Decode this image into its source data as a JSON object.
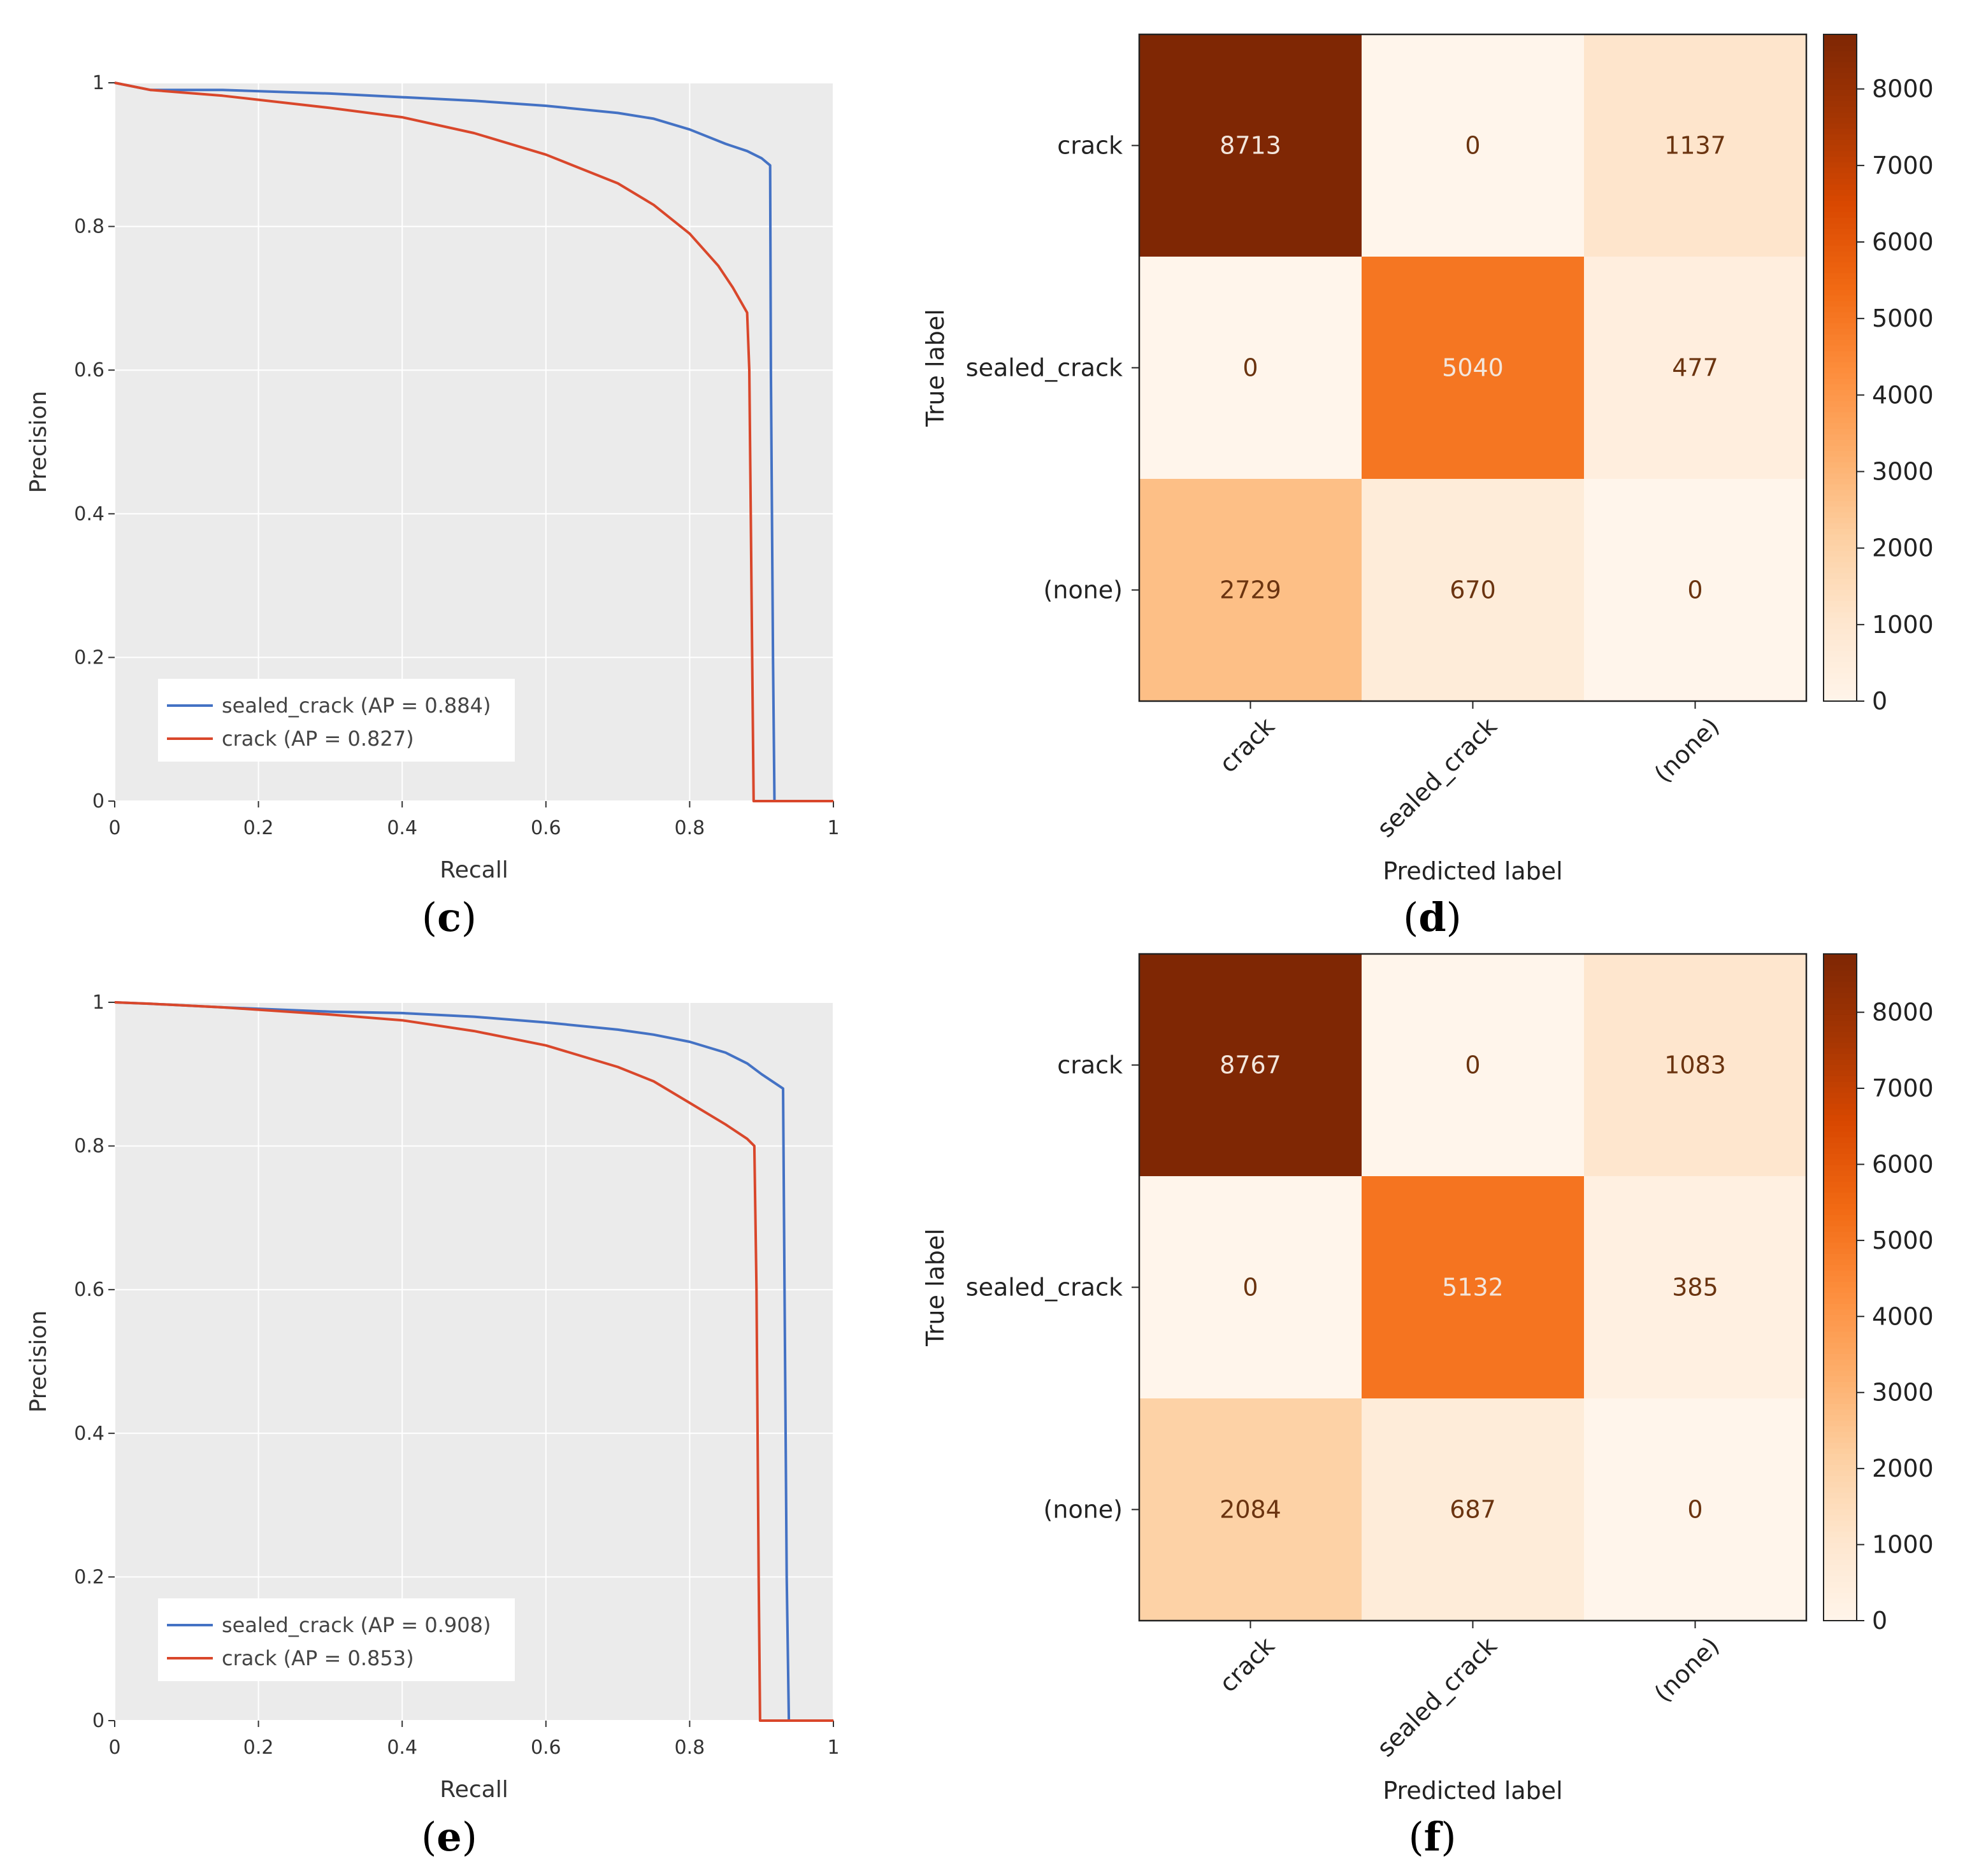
{
  "chart_data": [
    {
      "type": "line",
      "panel": "c",
      "xlabel": "Recall",
      "ylabel": "Precision",
      "xlim": [
        0,
        1
      ],
      "ylim": [
        0,
        1
      ],
      "xticks": [
        "0",
        "0.2",
        "0.4",
        "0.6",
        "0.8",
        "1"
      ],
      "yticks": [
        "0",
        "0.2",
        "0.4",
        "0.6",
        "0.8",
        "1"
      ],
      "grid": true,
      "legend_position": "bottom-left",
      "series": [
        {
          "name": "sealed_crack (AP = 0.884)",
          "color": "#4472c4",
          "points": [
            [
              0,
              1
            ],
            [
              0.05,
              0.99
            ],
            [
              0.15,
              0.99
            ],
            [
              0.3,
              0.985
            ],
            [
              0.4,
              0.98
            ],
            [
              0.5,
              0.975
            ],
            [
              0.6,
              0.968
            ],
            [
              0.7,
              0.958
            ],
            [
              0.75,
              0.95
            ],
            [
              0.8,
              0.935
            ],
            [
              0.85,
              0.915
            ],
            [
              0.88,
              0.905
            ],
            [
              0.9,
              0.895
            ],
            [
              0.912,
              0.885
            ],
            [
              0.913,
              0.6
            ],
            [
              0.916,
              0.2
            ],
            [
              0.918,
              0
            ],
            [
              1,
              0
            ]
          ]
        },
        {
          "name": "crack (AP = 0.827)",
          "color": "#d9472b",
          "points": [
            [
              0,
              1
            ],
            [
              0.05,
              0.99
            ],
            [
              0.15,
              0.982
            ],
            [
              0.3,
              0.965
            ],
            [
              0.4,
              0.952
            ],
            [
              0.5,
              0.93
            ],
            [
              0.6,
              0.9
            ],
            [
              0.7,
              0.86
            ],
            [
              0.75,
              0.83
            ],
            [
              0.8,
              0.79
            ],
            [
              0.84,
              0.745
            ],
            [
              0.86,
              0.715
            ],
            [
              0.88,
              0.68
            ],
            [
              0.883,
              0.6
            ],
            [
              0.885,
              0.4
            ],
            [
              0.887,
              0.2
            ],
            [
              0.889,
              0
            ],
            [
              1,
              0
            ]
          ]
        }
      ]
    },
    {
      "type": "heatmap",
      "panel": "d",
      "xlabel": "Predicted label",
      "ylabel": "True label",
      "categories": [
        "crack",
        "sealed_crack",
        "(none)"
      ],
      "matrix": [
        [
          8713,
          0,
          1137
        ],
        [
          0,
          5040,
          477
        ],
        [
          2729,
          670,
          0
        ]
      ],
      "cells_text": [
        [
          "8713",
          "0",
          "1137"
        ],
        [
          "0",
          "5040",
          "477"
        ],
        [
          "2729",
          "670",
          "0"
        ]
      ],
      "colorbar": {
        "min": 0,
        "max": 8713,
        "ticks": [
          "0",
          "1000",
          "2000",
          "3000",
          "4000",
          "5000",
          "6000",
          "7000",
          "8000"
        ]
      },
      "colormap": "Oranges"
    },
    {
      "type": "line",
      "panel": "e",
      "xlabel": "Recall",
      "ylabel": "Precision",
      "xlim": [
        0,
        1
      ],
      "ylim": [
        0,
        1
      ],
      "xticks": [
        "0",
        "0.2",
        "0.4",
        "0.6",
        "0.8",
        "1"
      ],
      "yticks": [
        "0",
        "0.2",
        "0.4",
        "0.6",
        "0.8",
        "1"
      ],
      "grid": true,
      "legend_position": "bottom-left",
      "series": [
        {
          "name": "sealed_crack (AP = 0.908)",
          "color": "#4472c4",
          "points": [
            [
              0,
              1
            ],
            [
              0.05,
              0.998
            ],
            [
              0.15,
              0.993
            ],
            [
              0.3,
              0.987
            ],
            [
              0.4,
              0.985
            ],
            [
              0.5,
              0.98
            ],
            [
              0.6,
              0.972
            ],
            [
              0.7,
              0.962
            ],
            [
              0.75,
              0.955
            ],
            [
              0.8,
              0.945
            ],
            [
              0.85,
              0.93
            ],
            [
              0.88,
              0.915
            ],
            [
              0.9,
              0.9
            ],
            [
              0.93,
              0.88
            ],
            [
              0.932,
              0.6
            ],
            [
              0.935,
              0.2
            ],
            [
              0.938,
              0
            ],
            [
              1,
              0
            ]
          ]
        },
        {
          "name": "crack (AP = 0.853)",
          "color": "#d9472b",
          "points": [
            [
              0,
              1
            ],
            [
              0.05,
              0.998
            ],
            [
              0.15,
              0.993
            ],
            [
              0.3,
              0.983
            ],
            [
              0.4,
              0.975
            ],
            [
              0.5,
              0.96
            ],
            [
              0.6,
              0.94
            ],
            [
              0.7,
              0.91
            ],
            [
              0.75,
              0.89
            ],
            [
              0.8,
              0.86
            ],
            [
              0.85,
              0.83
            ],
            [
              0.88,
              0.81
            ],
            [
              0.89,
              0.8
            ],
            [
              0.893,
              0.6
            ],
            [
              0.896,
              0.2
            ],
            [
              0.898,
              0
            ],
            [
              1,
              0
            ]
          ]
        }
      ]
    },
    {
      "type": "heatmap",
      "panel": "f",
      "xlabel": "Predicted label",
      "ylabel": "True label",
      "categories": [
        "crack",
        "sealed_crack",
        "(none)"
      ],
      "matrix": [
        [
          8767,
          0,
          1083
        ],
        [
          0,
          5132,
          385
        ],
        [
          2084,
          687,
          0
        ]
      ],
      "cells_text": [
        [
          "8767",
          "0",
          "1083"
        ],
        [
          "0",
          "5132",
          "385"
        ],
        [
          "2084",
          "687",
          "0"
        ]
      ],
      "colorbar": {
        "min": 0,
        "max": 8767,
        "ticks": [
          "0",
          "1000",
          "2000",
          "3000",
          "4000",
          "5000",
          "6000",
          "7000",
          "8000"
        ]
      },
      "colormap": "Oranges"
    }
  ],
  "captions": [
    "c",
    "d",
    "e",
    "f"
  ]
}
